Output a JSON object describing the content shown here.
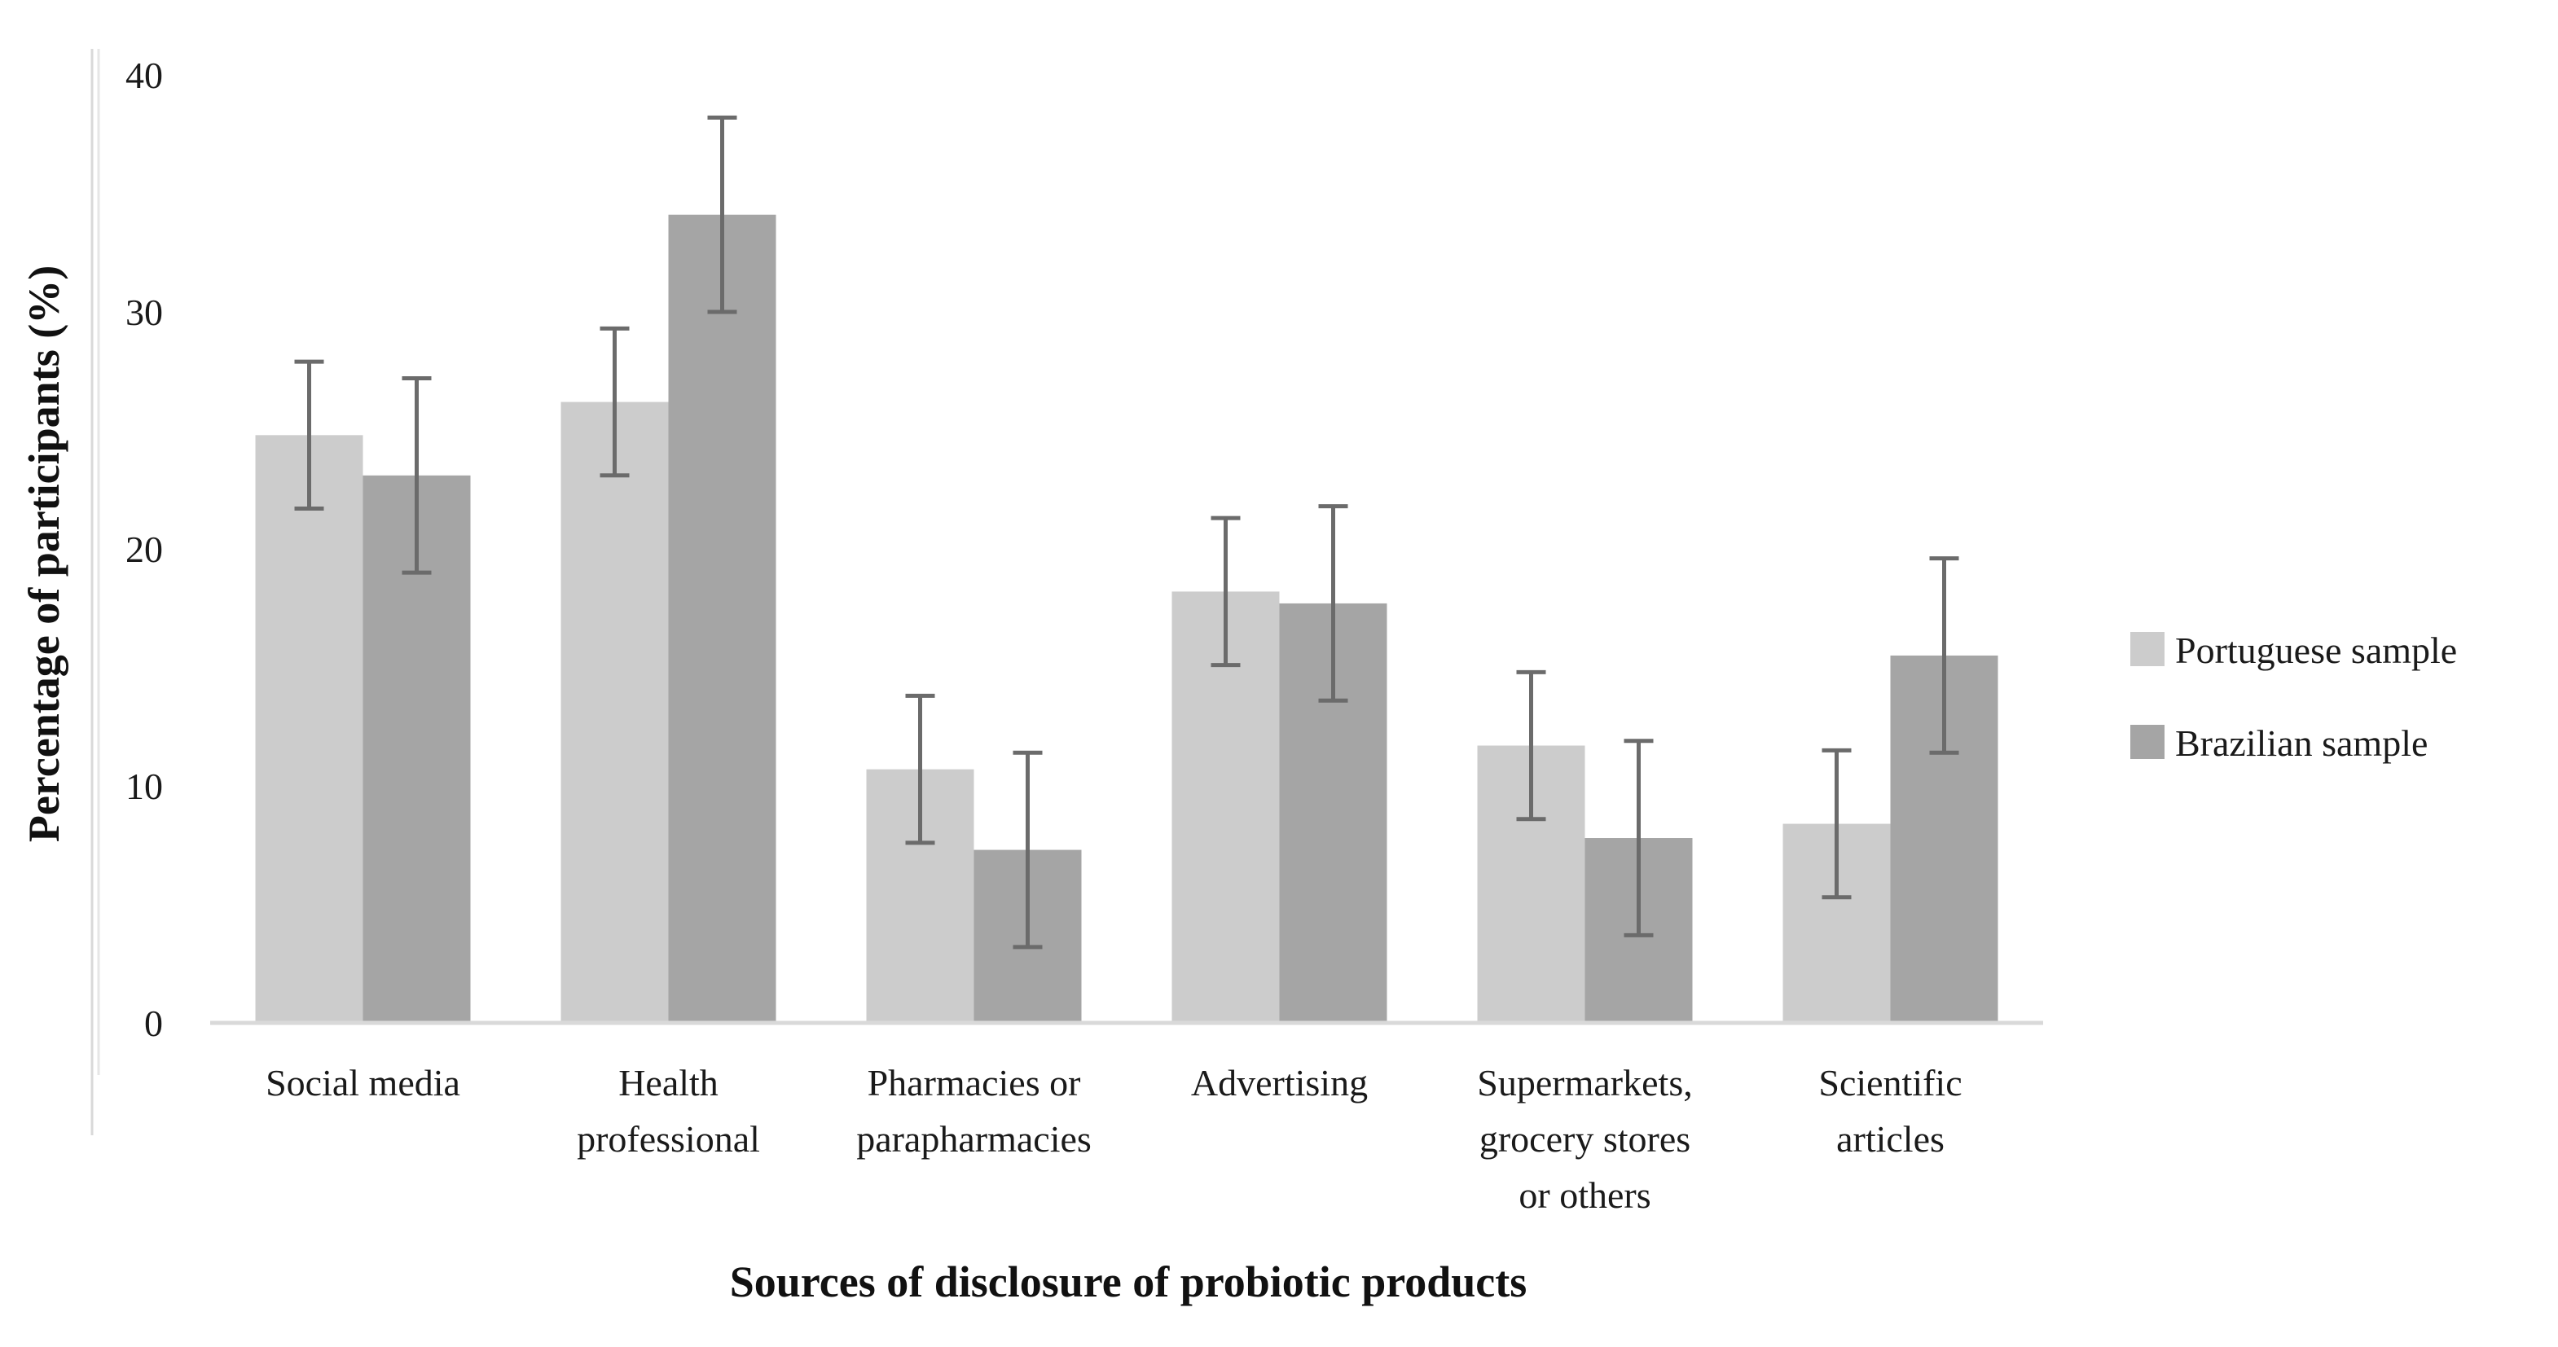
{
  "chart_data": {
    "type": "bar",
    "title": "",
    "xlabel": "Sources of disclosure of probiotic products",
    "ylabel": "Percentage of participants (%)",
    "ylim": [
      0,
      40
    ],
    "yticks": [
      0,
      10,
      20,
      30,
      40
    ],
    "grid": false,
    "legend_position": "right",
    "categories": [
      [
        "Social media"
      ],
      [
        "Health",
        "professional"
      ],
      [
        "Pharmacies or",
        "parapharmacies"
      ],
      [
        "Advertising"
      ],
      [
        "Supermarkets,",
        "grocery stores",
        "or others"
      ],
      [
        "Scientific",
        "articles"
      ]
    ],
    "series": [
      {
        "name": "Portuguese sample",
        "color": "#cccccc",
        "values": [
          24.8,
          26.2,
          10.7,
          18.2,
          11.7,
          8.4
        ],
        "error_low": [
          21.7,
          23.1,
          7.6,
          15.1,
          8.6,
          5.3
        ],
        "error_high": [
          27.9,
          29.3,
          13.8,
          21.3,
          14.8,
          11.5
        ]
      },
      {
        "name": "Brazilian sample",
        "color": "#a5a5a5",
        "values": [
          23.1,
          34.1,
          7.3,
          17.7,
          7.8,
          15.5
        ],
        "error_low": [
          19.0,
          30.0,
          3.2,
          13.6,
          3.7,
          11.4
        ],
        "error_high": [
          27.2,
          38.2,
          11.4,
          21.8,
          11.9,
          19.6
        ]
      }
    ]
  }
}
